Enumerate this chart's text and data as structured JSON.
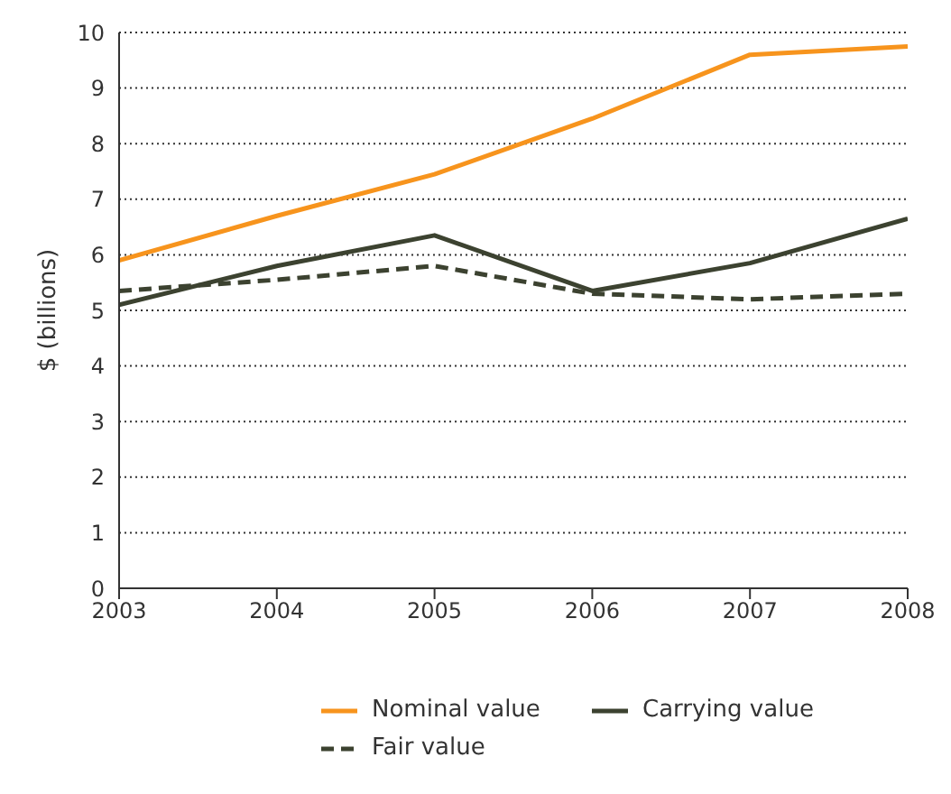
{
  "chart_data": {
    "type": "line",
    "ylabel": "$ (billions)",
    "x": [
      2003,
      2004,
      2005,
      2006,
      2007,
      2008
    ],
    "xlim": [
      2003,
      2008
    ],
    "xticks": [
      2003,
      2004,
      2005,
      2006,
      2007,
      2008
    ],
    "ylim": [
      0,
      10
    ],
    "yticks": [
      0,
      1,
      2,
      3,
      4,
      5,
      6,
      7,
      8,
      9,
      10
    ],
    "grid": "y",
    "legend": "bottom",
    "marker": "none",
    "series": [
      {
        "name": "Nominal value",
        "color": "#f7941d",
        "values": [
          5.9,
          6.7,
          7.45,
          8.45,
          9.6,
          9.75
        ],
        "line_style": "solid"
      },
      {
        "name": "Carrying value",
        "color": "#3c4230",
        "values": [
          5.1,
          5.8,
          6.35,
          5.35,
          5.85,
          6.65
        ],
        "line_style": "solid"
      },
      {
        "name": "Fair value",
        "color": "#3c4230",
        "values": [
          5.35,
          5.55,
          5.8,
          5.3,
          5.2,
          5.3
        ],
        "line_style": "dashed"
      }
    ]
  }
}
